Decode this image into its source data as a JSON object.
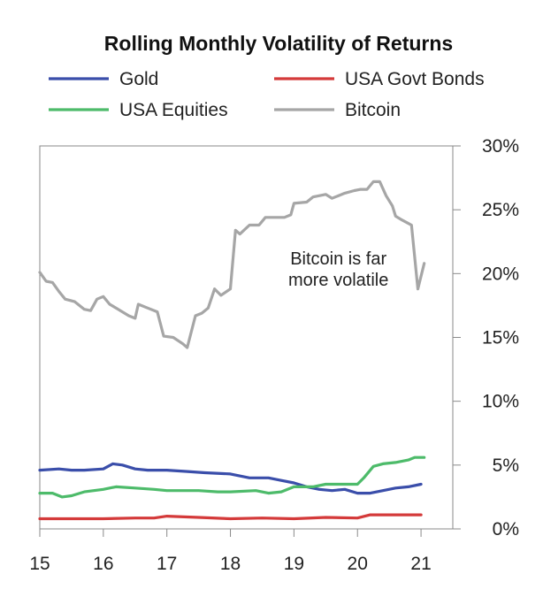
{
  "chart_data": {
    "type": "line",
    "title": "Rolling Monthly Volatility of Returns",
    "xlabel": "",
    "ylabel": "",
    "x_ticks": [
      "15",
      "16",
      "17",
      "18",
      "19",
      "20",
      "21"
    ],
    "y_ticks": [
      "0%",
      "5%",
      "10%",
      "15%",
      "20%",
      "25%",
      "30%"
    ],
    "xlim": [
      15,
      21.5
    ],
    "ylim": [
      0,
      30
    ],
    "grid": false,
    "legend_position": "top",
    "annotation": {
      "lines": [
        "Bitcoin is far",
        "more volatile"
      ],
      "x": 19.7,
      "y": 20.7
    },
    "series": [
      {
        "name": "Gold",
        "color": "#3a4eaa",
        "points": [
          [
            15.0,
            4.6
          ],
          [
            15.3,
            4.7
          ],
          [
            15.5,
            4.6
          ],
          [
            15.7,
            4.6
          ],
          [
            16.0,
            4.7
          ],
          [
            16.15,
            5.1
          ],
          [
            16.3,
            5.0
          ],
          [
            16.5,
            4.7
          ],
          [
            16.7,
            4.6
          ],
          [
            17.0,
            4.6
          ],
          [
            17.3,
            4.5
          ],
          [
            17.6,
            4.4
          ],
          [
            18.0,
            4.3
          ],
          [
            18.3,
            4.0
          ],
          [
            18.6,
            4.0
          ],
          [
            18.8,
            3.8
          ],
          [
            19.0,
            3.6
          ],
          [
            19.2,
            3.3
          ],
          [
            19.4,
            3.1
          ],
          [
            19.6,
            3.0
          ],
          [
            19.8,
            3.1
          ],
          [
            20.0,
            2.8
          ],
          [
            20.2,
            2.8
          ],
          [
            20.4,
            3.0
          ],
          [
            20.6,
            3.2
          ],
          [
            20.8,
            3.3
          ],
          [
            21.0,
            3.5
          ]
        ]
      },
      {
        "name": "USA Govt Bonds",
        "color": "#d43a3a",
        "points": [
          [
            15.0,
            0.8
          ],
          [
            15.5,
            0.8
          ],
          [
            16.0,
            0.8
          ],
          [
            16.5,
            0.85
          ],
          [
            16.8,
            0.85
          ],
          [
            17.0,
            1.0
          ],
          [
            17.5,
            0.9
          ],
          [
            18.0,
            0.8
          ],
          [
            18.5,
            0.85
          ],
          [
            19.0,
            0.8
          ],
          [
            19.5,
            0.9
          ],
          [
            20.0,
            0.85
          ],
          [
            20.2,
            1.1
          ],
          [
            20.5,
            1.1
          ],
          [
            21.0,
            1.1
          ]
        ]
      },
      {
        "name": "USA Equities",
        "color": "#4dbb6a",
        "points": [
          [
            15.0,
            2.8
          ],
          [
            15.2,
            2.8
          ],
          [
            15.35,
            2.5
          ],
          [
            15.5,
            2.6
          ],
          [
            15.7,
            2.9
          ],
          [
            16.0,
            3.1
          ],
          [
            16.2,
            3.3
          ],
          [
            16.5,
            3.2
          ],
          [
            16.8,
            3.1
          ],
          [
            17.0,
            3.0
          ],
          [
            17.5,
            3.0
          ],
          [
            17.8,
            2.9
          ],
          [
            18.0,
            2.9
          ],
          [
            18.4,
            3.0
          ],
          [
            18.6,
            2.8
          ],
          [
            18.8,
            2.9
          ],
          [
            19.0,
            3.3
          ],
          [
            19.3,
            3.3
          ],
          [
            19.5,
            3.5
          ],
          [
            19.8,
            3.5
          ],
          [
            20.0,
            3.5
          ],
          [
            20.1,
            4.0
          ],
          [
            20.25,
            4.9
          ],
          [
            20.4,
            5.1
          ],
          [
            20.6,
            5.2
          ],
          [
            20.8,
            5.4
          ],
          [
            20.9,
            5.6
          ],
          [
            21.05,
            5.6
          ]
        ]
      },
      {
        "name": "Bitcoin",
        "color": "#a6a6a6",
        "points": [
          [
            15.0,
            20.1
          ],
          [
            15.1,
            19.4
          ],
          [
            15.2,
            19.3
          ],
          [
            15.3,
            18.6
          ],
          [
            15.4,
            18.0
          ],
          [
            15.55,
            17.8
          ],
          [
            15.7,
            17.2
          ],
          [
            15.8,
            17.1
          ],
          [
            15.9,
            18.0
          ],
          [
            16.0,
            18.2
          ],
          [
            16.1,
            17.6
          ],
          [
            16.3,
            17.0
          ],
          [
            16.4,
            16.7
          ],
          [
            16.5,
            16.5
          ],
          [
            16.55,
            17.6
          ],
          [
            16.7,
            17.3
          ],
          [
            16.85,
            17.0
          ],
          [
            16.95,
            15.1
          ],
          [
            17.1,
            15.0
          ],
          [
            17.25,
            14.5
          ],
          [
            17.32,
            14.2
          ],
          [
            17.45,
            16.7
          ],
          [
            17.55,
            16.9
          ],
          [
            17.65,
            17.3
          ],
          [
            17.75,
            18.8
          ],
          [
            17.85,
            18.3
          ],
          [
            18.0,
            18.8
          ],
          [
            18.08,
            23.4
          ],
          [
            18.15,
            23.1
          ],
          [
            18.3,
            23.8
          ],
          [
            18.45,
            23.8
          ],
          [
            18.55,
            24.4
          ],
          [
            18.7,
            24.4
          ],
          [
            18.85,
            24.4
          ],
          [
            18.95,
            24.6
          ],
          [
            19.0,
            25.5
          ],
          [
            19.2,
            25.6
          ],
          [
            19.3,
            26.0
          ],
          [
            19.5,
            26.2
          ],
          [
            19.6,
            25.9
          ],
          [
            19.8,
            26.3
          ],
          [
            19.95,
            26.5
          ],
          [
            20.05,
            26.6
          ],
          [
            20.15,
            26.6
          ],
          [
            20.25,
            27.2
          ],
          [
            20.35,
            27.2
          ],
          [
            20.45,
            26.1
          ],
          [
            20.55,
            25.3
          ],
          [
            20.6,
            24.5
          ],
          [
            20.7,
            24.2
          ],
          [
            20.85,
            23.8
          ],
          [
            20.95,
            18.8
          ],
          [
            21.05,
            20.8
          ]
        ]
      }
    ]
  }
}
